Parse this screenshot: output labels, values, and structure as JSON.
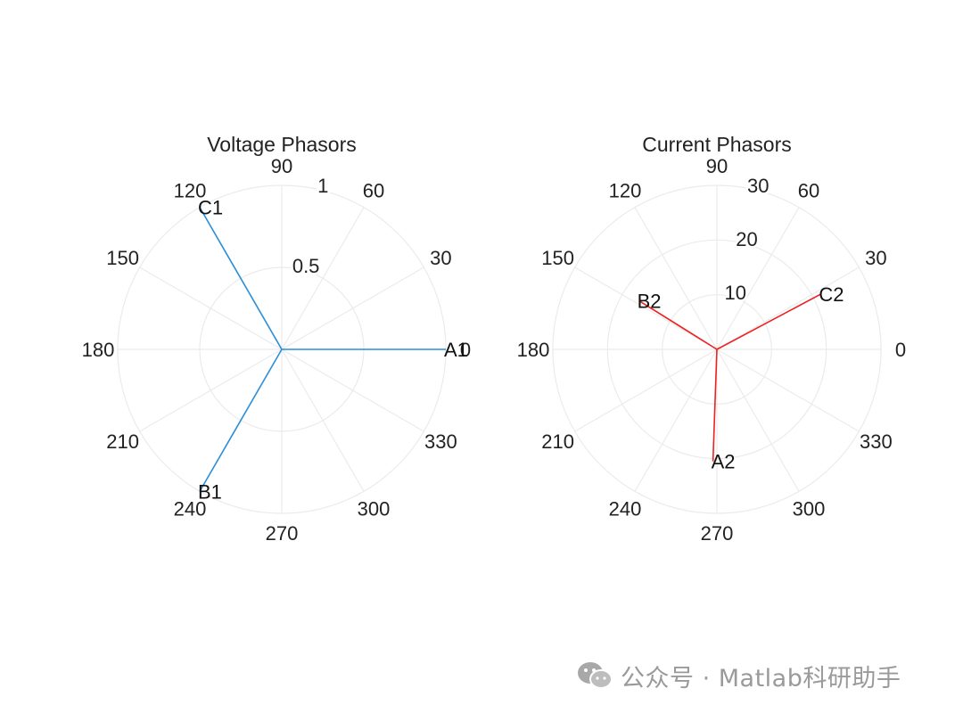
{
  "chart_data": [
    {
      "type": "polar",
      "title": "Voltage Phasors",
      "rlim": [
        0,
        1
      ],
      "r_ticks": [
        {
          "value": 0.5,
          "label": "0.5"
        },
        {
          "value": 1,
          "label": "1"
        }
      ],
      "theta_tick_labels": [
        "0",
        "30",
        "60",
        "90",
        "120",
        "150",
        "180",
        "210",
        "240",
        "270",
        "300",
        "330"
      ],
      "grid": true,
      "color": "#2a8fd9",
      "series": [
        {
          "name": "A1",
          "angle_deg": 0,
          "magnitude": 1.0
        },
        {
          "name": "B1",
          "angle_deg": -120,
          "magnitude": 1.0
        },
        {
          "name": "C1",
          "angle_deg": 120,
          "magnitude": 1.0
        }
      ]
    },
    {
      "type": "polar",
      "title": "Current Phasors",
      "rlim": [
        0,
        30
      ],
      "r_ticks": [
        {
          "value": 10,
          "label": "10"
        },
        {
          "value": 20,
          "label": "20"
        },
        {
          "value": 30,
          "label": "30"
        }
      ],
      "theta_tick_labels": [
        "0",
        "30",
        "60",
        "90",
        "120",
        "150",
        "180",
        "210",
        "240",
        "270",
        "300",
        "330"
      ],
      "grid": true,
      "color": "#ee2020",
      "series": [
        {
          "name": "A2",
          "angle_deg": -92,
          "magnitude": 20.5
        },
        {
          "name": "B2",
          "angle_deg": 148,
          "magnitude": 16.8
        },
        {
          "name": "C2",
          "angle_deg": 28,
          "magnitude": 21.5
        }
      ]
    }
  ],
  "watermark": {
    "text": "公众号 · Matlab科研助手",
    "icon": "wechat-icon"
  }
}
